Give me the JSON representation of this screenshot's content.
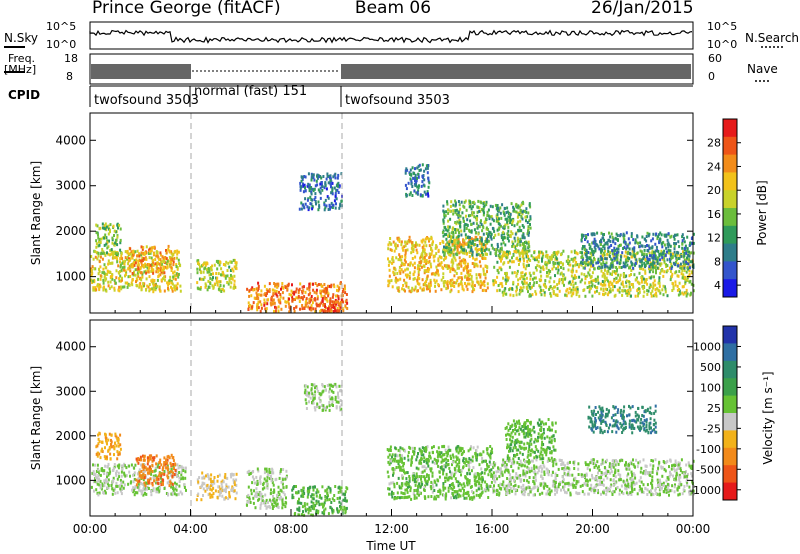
{
  "header": {
    "station": "Prince George (fitACF)",
    "beam": "Beam 06",
    "date": "26/Jan/2015"
  },
  "summary": {
    "nsky_label": "N.Sky",
    "nsky_ticks": [
      "10^5",
      "10^0"
    ],
    "nsearch_label": "N.Search",
    "nsearch_ticks": [
      "10^5",
      "10^0"
    ],
    "freq_label_line1": "Freq.",
    "freq_label_line2": "[MHz]",
    "freq_ticks": [
      "18",
      "8"
    ],
    "nave_label": "Nave",
    "nave_ticks": [
      "60",
      "0"
    ],
    "cpid_label": "CPID",
    "modes": [
      {
        "name": "twofsound 3503"
      },
      {
        "name": "normal (fast) 151"
      },
      {
        "name": "twofsound 3503"
      }
    ]
  },
  "chart_data": [
    {
      "type": "heatmap",
      "panel": "power",
      "ylabel": "Slant Range [km]",
      "yticks": [
        "1000",
        "2000",
        "3000",
        "4000"
      ],
      "ylim": [
        200,
        4600
      ],
      "xlim": [
        0,
        24
      ],
      "colorbar": {
        "label": "Power [dB]",
        "ticks": [
          "28",
          "24",
          "20",
          "16",
          "12",
          "8",
          "4"
        ],
        "range": [
          0,
          30
        ],
        "colors": [
          "#1a1ae6",
          "#3355cc",
          "#2e7d8a",
          "#2f9a5a",
          "#6bbd3c",
          "#c8d22a",
          "#f2c21a",
          "#f28c1a",
          "#ee5518",
          "#e61a1a"
        ]
      },
      "echo_regions": [
        {
          "t0": 0.0,
          "t1": 3.6,
          "r0": 700,
          "r1": 1600,
          "level": 18
        },
        {
          "t0": 0.2,
          "t1": 1.2,
          "r0": 1500,
          "r1": 2200,
          "level": 14
        },
        {
          "t0": 1.5,
          "t1": 3.3,
          "r0": 1100,
          "r1": 1700,
          "level": 22
        },
        {
          "t0": 4.2,
          "t1": 5.8,
          "r0": 700,
          "r1": 1400,
          "level": 16
        },
        {
          "t0": 6.2,
          "t1": 10.2,
          "r0": 250,
          "r1": 900,
          "level": 24
        },
        {
          "t0": 9.2,
          "t1": 10.0,
          "r0": 250,
          "r1": 550,
          "level": 28
        },
        {
          "t0": 11.8,
          "t1": 15.8,
          "r0": 700,
          "r1": 1900,
          "level": 20
        },
        {
          "t0": 14.0,
          "t1": 17.5,
          "r0": 1500,
          "r1": 2700,
          "level": 12
        },
        {
          "t0": 16.0,
          "t1": 24.0,
          "r0": 600,
          "r1": 1600,
          "level": 16
        },
        {
          "t0": 19.5,
          "t1": 24.0,
          "r0": 1200,
          "r1": 2000,
          "level": 8
        },
        {
          "t0": 8.3,
          "t1": 10.0,
          "r0": 2500,
          "r1": 3300,
          "level": 6
        },
        {
          "t0": 12.5,
          "t1": 13.5,
          "r0": 2800,
          "r1": 3500,
          "level": 6
        }
      ]
    },
    {
      "type": "heatmap",
      "panel": "velocity",
      "ylabel": "Slant Range [km]",
      "yticks": [
        "1000",
        "2000",
        "3000",
        "4000"
      ],
      "ylim": [
        200,
        4600
      ],
      "xlim": [
        0,
        24
      ],
      "xticks": [
        "00:00",
        "04:00",
        "08:00",
        "12:00",
        "16:00",
        "20:00",
        "00:00"
      ],
      "xlabel": "Time UT",
      "colorbar": {
        "label": "Velocity [m s⁻¹]",
        "ticks": [
          "1000",
          "500",
          "100",
          "25",
          "-25",
          "-100",
          "-500",
          "-1000"
        ],
        "range": [
          -1000,
          1000
        ],
        "colors": [
          "#2233aa",
          "#2f6fa3",
          "#2e8c6a",
          "#3ba04a",
          "#66c234",
          "#c8c8c8",
          "#f2b21a",
          "#f28a1a",
          "#ee5518",
          "#e61a1a"
        ]
      },
      "echo_regions": [
        {
          "t0": 0.0,
          "t1": 3.8,
          "r0": 700,
          "r1": 1400,
          "vel": 0
        },
        {
          "t0": 1.8,
          "t1": 3.4,
          "r0": 900,
          "r1": 1600,
          "vel": -600
        },
        {
          "t0": 0.2,
          "t1": 1.2,
          "r0": 1500,
          "r1": 2100,
          "vel": -400
        },
        {
          "t0": 4.2,
          "t1": 5.8,
          "r0": 600,
          "r1": 1200,
          "vel": -200
        },
        {
          "t0": 6.2,
          "t1": 7.8,
          "r0": 400,
          "r1": 1300,
          "vel": 0
        },
        {
          "t0": 8.0,
          "t1": 10.2,
          "r0": 250,
          "r1": 900,
          "vel": 200
        },
        {
          "t0": 11.8,
          "t1": 16.0,
          "r0": 600,
          "r1": 1800,
          "vel": 120
        },
        {
          "t0": 16.0,
          "t1": 24.0,
          "r0": 700,
          "r1": 1500,
          "vel": 0
        },
        {
          "t0": 16.5,
          "t1": 18.5,
          "r0": 1500,
          "r1": 2400,
          "vel": 150
        },
        {
          "t0": 19.8,
          "t1": 22.5,
          "r0": 2100,
          "r1": 2700,
          "vel": 600
        },
        {
          "t0": 8.5,
          "t1": 10.0,
          "r0": 2600,
          "r1": 3200,
          "vel": 0
        }
      ]
    }
  ]
}
